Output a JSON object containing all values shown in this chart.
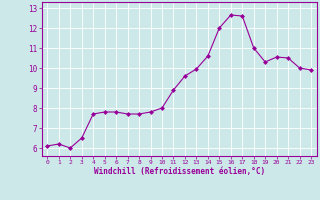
{
  "x": [
    0,
    1,
    2,
    3,
    4,
    5,
    6,
    7,
    8,
    9,
    10,
    11,
    12,
    13,
    14,
    15,
    16,
    17,
    18,
    19,
    20,
    21,
    22,
    23
  ],
  "y": [
    6.1,
    6.2,
    6.0,
    6.5,
    7.7,
    7.8,
    7.8,
    7.7,
    7.7,
    7.8,
    8.0,
    8.9,
    9.6,
    9.95,
    10.6,
    12.0,
    12.65,
    12.6,
    11.0,
    10.3,
    10.55,
    10.5,
    10.0,
    9.9
  ],
  "line_color": "#990099",
  "marker": "D",
  "marker_size": 2,
  "bg_color": "#cce8e8",
  "grid_color": "#ffffff",
  "xlabel": "Windchill (Refroidissement éolien,°C)",
  "ylabel_ticks": [
    6,
    7,
    8,
    9,
    10,
    11,
    12,
    13
  ],
  "xlim": [
    -0.5,
    23.5
  ],
  "ylim": [
    5.6,
    13.3
  ],
  "xticks": [
    0,
    1,
    2,
    3,
    4,
    5,
    6,
    7,
    8,
    9,
    10,
    11,
    12,
    13,
    14,
    15,
    16,
    17,
    18,
    19,
    20,
    21,
    22,
    23
  ],
  "font_color": "#990099"
}
